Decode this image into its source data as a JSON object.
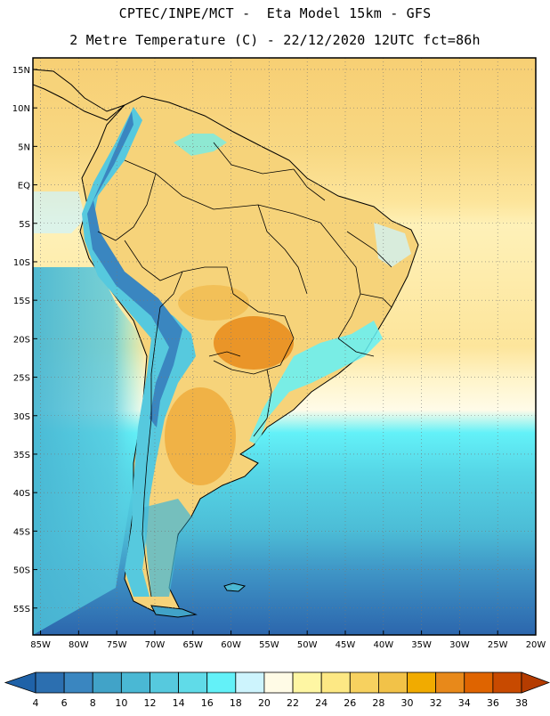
{
  "header": {
    "line1": "CPTEC/INPE/MCT -  Eta Model 15km - GFS",
    "line2": "2 Metre Temperature (C) - 22/12/2020 12UTC fct=86h"
  },
  "map": {
    "lon_labels": [
      "85W",
      "80W",
      "75W",
      "70W",
      "65W",
      "60W",
      "55W",
      "50W",
      "45W",
      "40W",
      "35W",
      "30W",
      "25W",
      "20W"
    ],
    "lat_labels": [
      "15N",
      "10N",
      "5N",
      "EQ",
      "5S",
      "10S",
      "15S",
      "20S",
      "25S",
      "30S",
      "35S",
      "40S",
      "45S",
      "50S",
      "55S"
    ],
    "lon_values": [
      -85,
      -80,
      -75,
      -70,
      -65,
      -60,
      -55,
      -50,
      -45,
      -40,
      -35,
      -30,
      -25,
      -20
    ],
    "lat_values": [
      15,
      10,
      5,
      0,
      -5,
      -10,
      -15,
      -20,
      -25,
      -30,
      -35,
      -40,
      -45,
      -50,
      -55
    ],
    "lon_range": [
      -86,
      -20
    ],
    "lat_range": [
      -58.5,
      16.5
    ],
    "grid": "dotted",
    "land_color": "#f7d680",
    "ocean_color": "#fde49a",
    "coast_color": "#000000"
  },
  "colorbar": {
    "labels": [
      "4",
      "6",
      "8",
      "10",
      "12",
      "14",
      "16",
      "18",
      "20",
      "22",
      "24",
      "26",
      "28",
      "30",
      "32",
      "34",
      "36",
      "38"
    ],
    "colors": [
      "#2c6fb0",
      "#3a86c0",
      "#41a3c8",
      "#4ab8d4",
      "#56c9de",
      "#60dbe8",
      "#63f1f8",
      "#cdf4fd",
      "#fffbe6",
      "#fef6a3",
      "#fde884",
      "#f7d15f",
      "#f2c248",
      "#f1ab00",
      "#e8891a",
      "#df6400",
      "#c84a00"
    ],
    "left_arrow_color": "#1f62a8",
    "right_arrow_color": "#b53c00"
  }
}
